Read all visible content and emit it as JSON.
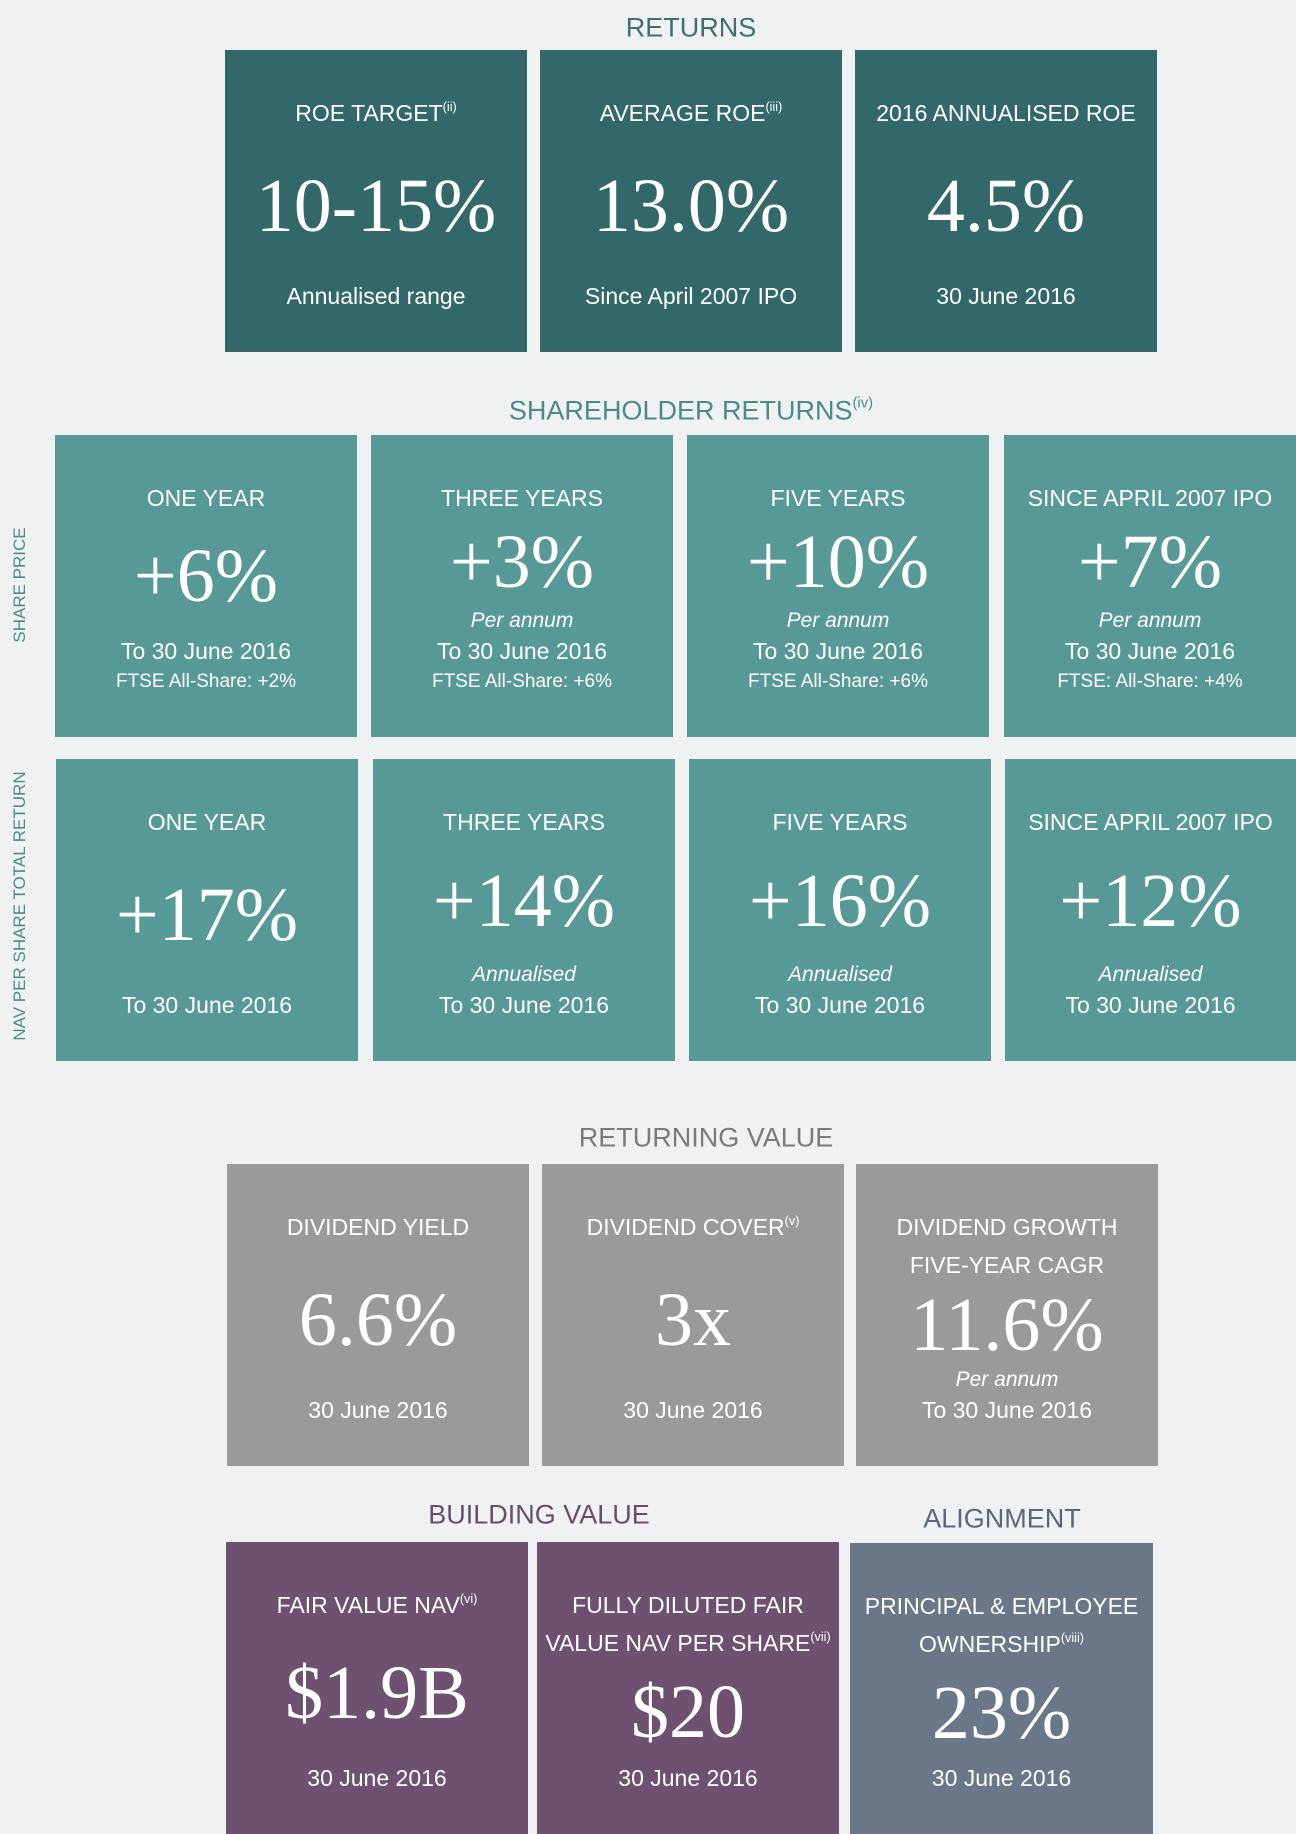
{
  "sections": [
    {
      "title": "RETURNS",
      "rows": [
        {
          "tiles": [
            {
              "heading": [
                "ROE TARGET"
              ],
              "sup": "(ii)",
              "value": "10-15%",
              "lines": [
                "Annualised range"
              ]
            },
            {
              "heading": [
                "AVERAGE ROE"
              ],
              "sup": "(iii)",
              "value": "13.0%",
              "lines": [
                "Since April 2007 IPO"
              ]
            },
            {
              "heading": [
                "2016 ANNUALISED ROE"
              ],
              "value": "4.5%",
              "lines": [
                "30 June 2016"
              ]
            }
          ]
        }
      ]
    },
    {
      "title": "SHAREHOLDER RETURNS",
      "title_sup": "(iv)",
      "rows": [
        {
          "label": "SHARE PRICE",
          "tiles": [
            {
              "heading": [
                "ONE YEAR"
              ],
              "value": "+6%",
              "lines": [
                "To 30 June 2016"
              ],
              "small": "FTSE All-Share: +2%"
            },
            {
              "heading": [
                "THREE YEARS"
              ],
              "value": "+3%",
              "note": "Per annum",
              "lines": [
                "To 30 June 2016"
              ],
              "small": "FTSE All-Share: +6%"
            },
            {
              "heading": [
                "FIVE YEARS"
              ],
              "value": "+10%",
              "note": "Per annum",
              "lines": [
                "To 30 June 2016"
              ],
              "small": "FTSE All-Share: +6%"
            },
            {
              "heading": [
                "SINCE APRIL 2007 IPO"
              ],
              "value": "+7%",
              "note": "Per annum",
              "lines": [
                "To 30 June 2016"
              ],
              "small": "FTSE: All-Share: +4%"
            }
          ]
        },
        {
          "label": "NAV PER SHARE TOTAL RETURN",
          "tiles": [
            {
              "heading": [
                "ONE YEAR"
              ],
              "value": "+17%",
              "lines": [
                "To 30 June 2016"
              ]
            },
            {
              "heading": [
                "THREE YEARS"
              ],
              "value": "+14%",
              "note": "Annualised",
              "lines": [
                "To 30 June 2016"
              ]
            },
            {
              "heading": [
                "FIVE YEARS"
              ],
              "value": "+16%",
              "note": "Annualised",
              "lines": [
                "To 30 June 2016"
              ]
            },
            {
              "heading": [
                "SINCE APRIL 2007 IPO"
              ],
              "value": "+12%",
              "note": "Annualised",
              "lines": [
                "To 30 June 2016"
              ]
            }
          ]
        }
      ]
    },
    {
      "title": "RETURNING VALUE",
      "rows": [
        {
          "tiles": [
            {
              "heading": [
                "DIVIDEND YIELD"
              ],
              "value": "6.6%",
              "lines": [
                "30 June 2016"
              ]
            },
            {
              "heading": [
                "DIVIDEND COVER"
              ],
              "sup": "(v)",
              "value": "3x",
              "lines": [
                "30 June 2016"
              ]
            },
            {
              "heading": [
                "DIVIDEND GROWTH",
                "FIVE-YEAR CAGR"
              ],
              "value": "11.6%",
              "note": "Per annum",
              "lines": [
                "To 30 June 2016"
              ]
            }
          ]
        }
      ]
    },
    {
      "title": "BUILDING VALUE",
      "rows": [
        {
          "tiles": [
            {
              "heading": [
                "FAIR VALUE NAV"
              ],
              "sup": "(vi)",
              "value": "$1.9B",
              "lines": [
                "30 June 2016"
              ]
            },
            {
              "heading": [
                "FULLY DILUTED FAIR",
                "VALUE NAV PER SHARE"
              ],
              "sup": "(vii)",
              "value": "$20",
              "lines": [
                "30 June 2016"
              ]
            }
          ]
        }
      ]
    },
    {
      "title": "ALIGNMENT",
      "rows": [
        {
          "tiles": [
            {
              "heading": [
                "PRINCIPAL & EMPLOYEE",
                "OWNERSHIP"
              ],
              "sup": "(viii)",
              "value": "23%",
              "lines": [
                "30 June 2016"
              ]
            }
          ]
        }
      ]
    }
  ]
}
